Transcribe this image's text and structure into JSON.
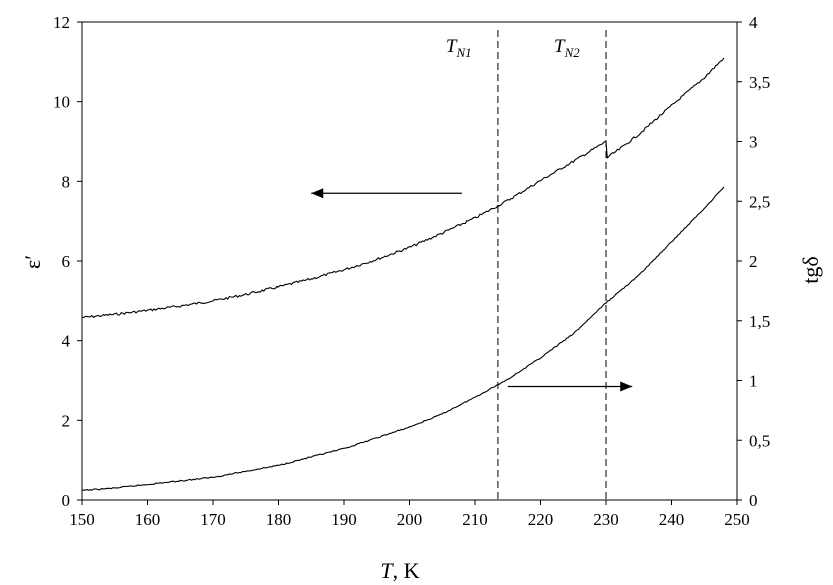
{
  "chart_data": {
    "type": "line",
    "xlabel": {
      "italic": "T",
      "rest": ", K"
    },
    "ylabel_left": "ε′",
    "ylabel_right": "tgδ",
    "xlim": [
      150,
      250
    ],
    "ylim_left": [
      0,
      12
    ],
    "ylim_right": [
      0,
      4
    ],
    "xticks": [
      150,
      160,
      170,
      180,
      190,
      200,
      210,
      220,
      230,
      240,
      250
    ],
    "yticks_left": [
      "0",
      "2",
      "4",
      "6",
      "8",
      "10",
      "12"
    ],
    "yticks_right": [
      "0",
      "0,5",
      "1",
      "1,5",
      "2",
      "2,5",
      "3",
      "3,5",
      "4"
    ],
    "grid": false,
    "vlines": [
      {
        "x": 213.5,
        "label": "T",
        "sub": "N1"
      },
      {
        "x": 230,
        "label": "T",
        "sub": "N2"
      }
    ],
    "series": [
      {
        "axis": "left",
        "x": [
          150,
          155,
          160,
          165,
          170,
          175,
          180,
          185,
          190,
          195,
          200,
          205,
          210,
          215,
          220,
          225,
          230,
          230.2,
          232,
          235,
          240,
          245,
          248
        ],
        "y": [
          4.58,
          4.66,
          4.76,
          4.87,
          5.0,
          5.16,
          5.35,
          5.55,
          5.78,
          6.04,
          6.34,
          6.7,
          7.08,
          7.52,
          8.02,
          8.5,
          9.0,
          8.6,
          8.8,
          9.18,
          9.9,
          10.6,
          11.1
        ]
      },
      {
        "axis": "right",
        "x": [
          150,
          155,
          160,
          165,
          170,
          175,
          180,
          185,
          190,
          195,
          200,
          205,
          210,
          215,
          220,
          225,
          230,
          235,
          240,
          245,
          248
        ],
        "y": [
          0.08,
          0.1,
          0.13,
          0.16,
          0.19,
          0.24,
          0.29,
          0.36,
          0.43,
          0.52,
          0.61,
          0.72,
          0.86,
          1.01,
          1.19,
          1.39,
          1.65,
          1.88,
          2.16,
          2.44,
          2.62
        ]
      }
    ],
    "arrows": [
      {
        "from_x": 208,
        "to_x": 185,
        "y_left": 7.7,
        "direction": "left"
      },
      {
        "from_x": 215,
        "to_x": 234,
        "y_right": 0.95,
        "direction": "right"
      }
    ]
  }
}
